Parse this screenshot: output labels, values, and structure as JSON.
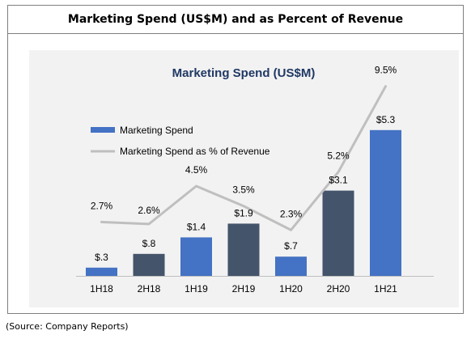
{
  "header": {
    "title": "Marketing Spend (US$M) and as Percent of Revenue"
  },
  "source": "(Source: Company Reports)",
  "chart_data": {
    "type": "bar",
    "title": "Marketing Spend (US$M)",
    "categories": [
      "1H18",
      "2H18",
      "1H19",
      "2H19",
      "1H20",
      "2H20",
      "1H21"
    ],
    "series": [
      {
        "name": "Marketing Spend",
        "type": "bar",
        "values": [
          0.3,
          0.8,
          1.4,
          1.9,
          0.7,
          3.1,
          5.3
        ],
        "labels": [
          "$.3",
          "$.8",
          "$1.4",
          "$1.9",
          "$.7",
          "$3.1",
          "$5.3"
        ],
        "colors": [
          "#4472c4",
          "#44546a",
          "#4472c4",
          "#44546a",
          "#4472c4",
          "#44546a",
          "#4472c4"
        ]
      },
      {
        "name": "Marketing Spend as % of Revenue",
        "type": "line",
        "values": [
          2.7,
          2.6,
          4.5,
          3.5,
          2.3,
          5.2,
          9.5
        ],
        "labels": [
          "2.7%",
          "2.6%",
          "4.5%",
          "3.5%",
          "2.3%",
          "5.2%",
          "9.5%"
        ],
        "color": "#bfbfbf"
      }
    ],
    "legend_position": "top-left",
    "grid": false,
    "title_color": "#1f3864",
    "bar_ylim": [
      0,
      6.0
    ],
    "line_ylim": [
      0,
      10.5
    ]
  }
}
